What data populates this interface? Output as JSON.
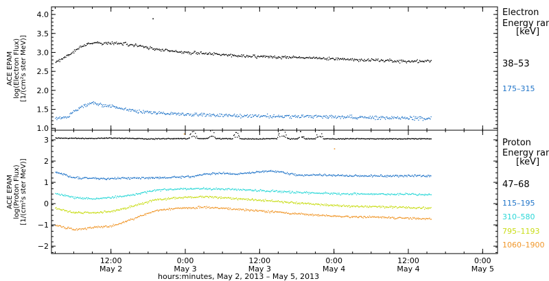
{
  "chart_data": [
    {
      "type": "scatter",
      "panel": "electron",
      "ylabel": [
        "ACE EPAM",
        "log(Electron Flux)",
        "[1/(cm²s ster MeV)]"
      ],
      "ylim": [
        0.95,
        4.2
      ],
      "yticks": [
        1.0,
        1.5,
        2.0,
        2.5,
        3.0,
        3.5,
        4.0
      ],
      "ytick_labels": [
        "1.0",
        "1.5",
        "2.0",
        "2.5",
        "3.0",
        "3.5",
        "4.0"
      ],
      "legend_title": [
        "Electron",
        "Energy ranges",
        "[keV]"
      ],
      "series": [
        {
          "name": "38–53",
          "color": "#000000",
          "x": [
            -0.75,
            -0.7,
            -0.6,
            -0.5,
            -0.42,
            -0.3,
            -0.2,
            -0.1,
            0.0,
            0.1,
            0.25,
            0.4,
            0.6,
            0.8,
            1.0,
            1.2,
            1.4,
            1.6,
            1.8,
            2.0,
            2.2,
            2.4,
            2.6,
            2.8,
            3.0,
            3.2,
            3.4,
            3.6,
            3.85,
            4.1,
            4.3
          ],
          "y": [
            2.75,
            2.8,
            2.9,
            3.05,
            3.15,
            3.24,
            3.26,
            3.25,
            3.26,
            3.25,
            3.22,
            3.18,
            3.1,
            3.05,
            3.01,
            2.99,
            2.97,
            2.94,
            2.91,
            2.9,
            2.89,
            2.88,
            2.87,
            2.85,
            2.84,
            2.82,
            2.81,
            2.8,
            2.78,
            2.77,
            2.79
          ]
        },
        {
          "name": "175–315",
          "color": "#1e73c8",
          "x": [
            -0.75,
            -0.6,
            -0.5,
            -0.4,
            -0.3,
            -0.2,
            -0.1,
            0.0,
            0.1,
            0.25,
            0.4,
            0.6,
            0.8,
            1.0,
            1.2,
            1.4,
            1.6,
            1.8,
            2.0,
            2.2,
            2.4,
            2.6,
            2.8,
            3.0,
            3.2,
            3.4,
            3.6,
            3.85,
            4.1,
            4.3
          ],
          "y": [
            1.25,
            1.3,
            1.45,
            1.58,
            1.68,
            1.65,
            1.62,
            1.6,
            1.55,
            1.5,
            1.45,
            1.42,
            1.4,
            1.38,
            1.37,
            1.36,
            1.35,
            1.34,
            1.34,
            1.33,
            1.33,
            1.32,
            1.32,
            1.31,
            1.3,
            1.3,
            1.29,
            1.28,
            1.28,
            1.27
          ]
        }
      ],
      "outliers": [
        {
          "x": 0.56,
          "y": 3.9,
          "color": "#000000"
        }
      ]
    },
    {
      "type": "scatter",
      "panel": "proton",
      "ylabel": [
        "ACE EPAM",
        "log(Proton Flux)",
        "[1/(cm²s ster MeV)]"
      ],
      "ylim": [
        -2.35,
        3.45
      ],
      "yticks": [
        -2,
        -1,
        0,
        1,
        2,
        3
      ],
      "ytick_labels": [
        "−2",
        "−1",
        "0",
        "1",
        "2",
        "3"
      ],
      "legend_title": [
        "Proton",
        "Energy ranges",
        "[keV]"
      ],
      "series": [
        {
          "name": "47–68",
          "color": "#000000",
          "x": [
            -0.75,
            -0.3,
            0.0,
            0.3,
            0.6,
            0.9,
            1.1,
            1.3,
            1.6,
            1.9,
            2.2,
            2.5,
            2.7,
            3.0,
            3.3,
            3.6,
            3.9,
            4.2,
            4.3
          ],
          "y": [
            3.1,
            3.08,
            3.1,
            3.08,
            3.06,
            3.08,
            3.07,
            3.08,
            3.07,
            3.06,
            3.07,
            3.06,
            3.07,
            3.06,
            3.07,
            3.06,
            3.06,
            3.07,
            3.06
          ]
        },
        {
          "name": "115–195",
          "color": "#1e73c8",
          "x": [
            -0.75,
            -0.5,
            -0.2,
            0.0,
            0.3,
            0.6,
            0.9,
            1.1,
            1.3,
            1.5,
            1.7,
            1.9,
            2.1,
            2.3,
            2.5,
            2.7,
            2.9,
            3.2,
            3.5,
            3.8,
            4.1,
            4.3
          ],
          "y": [
            1.5,
            1.25,
            1.2,
            1.2,
            1.22,
            1.23,
            1.26,
            1.3,
            1.42,
            1.44,
            1.42,
            1.48,
            1.55,
            1.5,
            1.35,
            1.38,
            1.35,
            1.33,
            1.32,
            1.32,
            1.33,
            1.32
          ]
        },
        {
          "name": "310–580",
          "color": "#2ad7d7",
          "x": [
            -0.75,
            -0.5,
            -0.2,
            0.0,
            0.3,
            0.6,
            0.9,
            1.1,
            1.3,
            1.5,
            1.7,
            1.9,
            2.1,
            2.3,
            2.5,
            2.7,
            2.9,
            3.2,
            3.5,
            3.8,
            4.1,
            4.3
          ],
          "y": [
            0.5,
            0.3,
            0.25,
            0.3,
            0.45,
            0.65,
            0.7,
            0.72,
            0.72,
            0.7,
            0.68,
            0.65,
            0.62,
            0.58,
            0.55,
            0.52,
            0.5,
            0.48,
            0.47,
            0.46,
            0.45,
            0.45
          ]
        },
        {
          "name": "795–1193",
          "color": "#c8dc14",
          "x": [
            -0.75,
            -0.5,
            -0.2,
            0.0,
            0.3,
            0.6,
            0.9,
            1.1,
            1.3,
            1.5,
            1.7,
            1.9,
            2.1,
            2.3,
            2.5,
            2.7,
            2.9,
            3.2,
            3.5,
            3.8,
            4.1,
            4.3
          ],
          "y": [
            -0.2,
            -0.4,
            -0.4,
            -0.35,
            -0.1,
            0.2,
            0.3,
            0.32,
            0.35,
            0.3,
            0.25,
            0.2,
            0.15,
            0.1,
            0.05,
            0.0,
            -0.05,
            -0.1,
            -0.12,
            -0.15,
            -0.18,
            -0.2
          ]
        },
        {
          "name": "1060–1900",
          "color": "#f09628",
          "x": [
            -0.75,
            -0.5,
            -0.2,
            0.0,
            0.3,
            0.6,
            0.9,
            1.1,
            1.3,
            1.5,
            1.7,
            1.9,
            2.1,
            2.3,
            2.5,
            2.7,
            2.9,
            3.2,
            3.5,
            3.8,
            4.1,
            4.3
          ],
          "y": [
            -1.0,
            -1.2,
            -1.1,
            -1.05,
            -0.7,
            -0.3,
            -0.2,
            -0.18,
            -0.15,
            -0.2,
            -0.25,
            -0.3,
            -0.35,
            -0.4,
            -0.45,
            -0.5,
            -0.55,
            -0.6,
            -0.62,
            -0.65,
            -0.68,
            -0.7
          ]
        }
      ],
      "bumps": [
        {
          "series": 0,
          "x": 1.1,
          "width": 0.06,
          "height": 0.35
        },
        {
          "series": 0,
          "x": 1.35,
          "width": 0.06,
          "height": 0.4
        },
        {
          "series": 0,
          "x": 1.68,
          "width": 0.05,
          "height": 0.3
        },
        {
          "series": 0,
          "x": 2.3,
          "width": 0.07,
          "height": 0.45
        },
        {
          "series": 0,
          "x": 2.55,
          "width": 0.05,
          "height": 0.35
        },
        {
          "series": 0,
          "x": 2.8,
          "width": 0.05,
          "height": 0.4
        }
      ],
      "outliers": [
        {
          "x": 0.98,
          "y": 3.3,
          "color": "#f09628"
        },
        {
          "x": 3.0,
          "y": 2.6,
          "color": "#f09628"
        }
      ]
    }
  ],
  "x_axis": {
    "range": [
      -0.8,
      5.2
    ],
    "ticks": [
      {
        "x": 0.0,
        "label": "12:00",
        "sub": "May 2"
      },
      {
        "x": 1.0,
        "label": "0:00",
        "sub": "May 3"
      },
      {
        "x": 2.0,
        "label": "12:00",
        "sub": "May 3"
      },
      {
        "x": 3.0,
        "label": "0:00",
        "sub": "May 4"
      },
      {
        "x": 4.0,
        "label": "12:00",
        "sub": "May 4"
      },
      {
        "x": 5.0,
        "label": "0:00",
        "sub": "May 5"
      }
    ],
    "xlabel": "hours:minutes, May  2, 2013 – May  5, 2013"
  }
}
